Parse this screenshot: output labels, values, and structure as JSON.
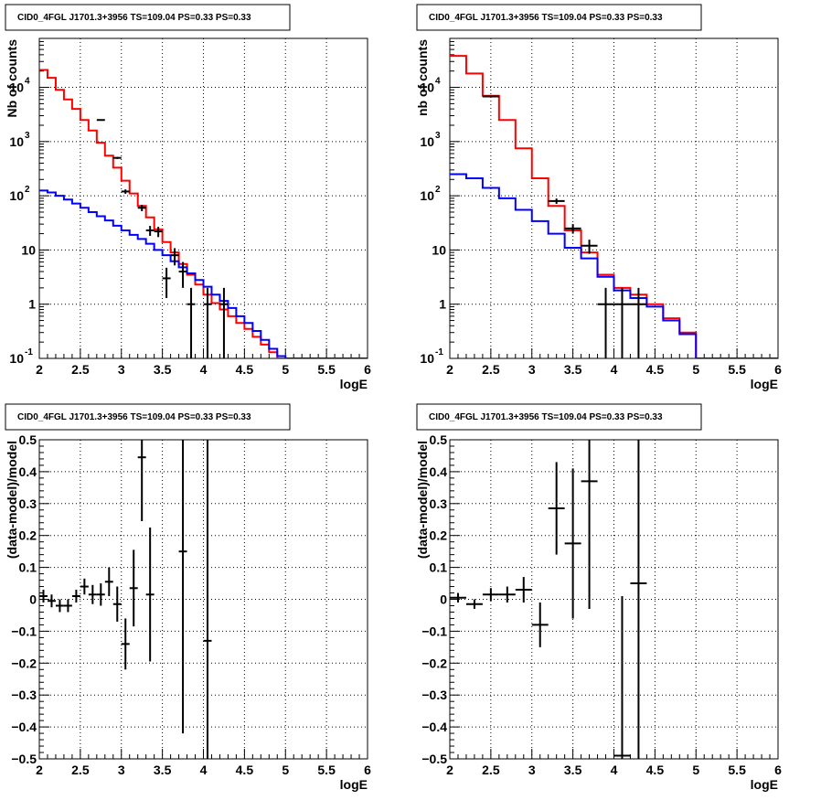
{
  "chart_data": [
    {
      "type": "line",
      "title": "CID0_4FGL J1701.3+3956 TS=109.04 PS=0.33 PS=0.33",
      "xlabel": "logE",
      "ylabel": "Nb of counts",
      "xlim": [
        2,
        6
      ],
      "ylim": [
        0.1,
        80000
      ],
      "yscale": "log",
      "grid": true,
      "x_ticks": [
        2,
        2.5,
        3,
        3.5,
        4,
        4.5,
        5,
        5.5,
        6
      ],
      "x_tick_labels": [
        "2",
        "2.5",
        "3",
        "3.5",
        "4",
        "4.5",
        "5",
        "5.5",
        "6"
      ],
      "y_ticks": [
        0.1,
        1,
        10,
        100,
        1000,
        10000
      ],
      "y_tick_labels": [
        {
          "base": "10",
          "exp": "-1"
        },
        {
          "base": "1",
          "exp": ""
        },
        {
          "base": "10",
          "exp": ""
        },
        {
          "base": "10",
          "exp": "2"
        },
        {
          "base": "10",
          "exp": "3"
        },
        {
          "base": "10",
          "exp": "4"
        }
      ],
      "bin_edges": [
        2,
        2.1,
        2.2,
        2.3,
        2.4,
        2.5,
        2.6,
        2.7,
        2.8,
        2.9,
        3,
        3.1,
        3.2,
        3.3,
        3.4,
        3.5,
        3.6,
        3.7,
        3.8,
        3.9,
        4,
        4.1,
        4.2,
        4.3,
        4.4,
        4.5,
        4.6,
        4.7,
        4.8,
        4.9,
        5,
        5.1,
        5.2,
        5.3,
        5.4,
        5.5,
        5.6,
        5.7,
        5.8,
        5.9,
        6
      ],
      "series": [
        {
          "color": "#ff0000",
          "style": "step",
          "values": [
            21000,
            15000,
            9000,
            6000,
            4000,
            2500,
            1600,
            950,
            550,
            330,
            190,
            110,
            65,
            40,
            24,
            14,
            9,
            5.5,
            3.5,
            2.3,
            1.5,
            1.05,
            0.8,
            0.6,
            0.45,
            0.35,
            0.25,
            0.18,
            0.13,
            0.1,
            0.1,
            0.1,
            0.1,
            0.1,
            0.1,
            0.1,
            0.1,
            0.1,
            0.1,
            0.1
          ]
        },
        {
          "color": "#0000ff",
          "style": "step",
          "values": [
            125,
            115,
            100,
            85,
            72,
            60,
            50,
            42,
            35,
            28,
            23,
            19,
            16,
            13,
            10,
            8,
            6.2,
            4.8,
            3.7,
            2.8,
            2.1,
            1.5,
            1.15,
            0.85,
            0.6,
            0.45,
            0.32,
            0.22,
            0.15,
            0.11,
            0.1,
            0.1,
            0.1,
            0.1,
            0.1,
            0.1,
            0.1,
            0.1,
            0.1,
            0.1
          ]
        },
        {
          "color": "#000000",
          "style": "points",
          "points": [
            {
              "x": 2.75,
              "y": 2500,
              "xerr": 0.05,
              "yerr": [
                50,
                50
              ]
            },
            {
              "x": 2.95,
              "y": 500,
              "xerr": 0.05,
              "yerr": [
                22,
                22
              ]
            },
            {
              "x": 3.05,
              "y": 120,
              "xerr": 0.05,
              "yerr": [
                11,
                11
              ]
            },
            {
              "x": 3.25,
              "y": 60,
              "xerr": 0.05,
              "yerr": [
                8,
                8
              ]
            },
            {
              "x": 3.35,
              "y": 23,
              "xerr": 0.05,
              "yerr": [
                4.8,
                4.8
              ]
            },
            {
              "x": 3.45,
              "y": 22,
              "xerr": 0.05,
              "yerr": [
                4.7,
                4.7
              ]
            },
            {
              "x": 3.55,
              "y": 3,
              "xerr": 0.05,
              "yerr": [
                1.7,
                1.7
              ]
            },
            {
              "x": 3.65,
              "y": 8,
              "xerr": 0.05,
              "yerr": [
                2.8,
                2.8
              ]
            },
            {
              "x": 3.75,
              "y": 4,
              "xerr": 0.05,
              "yerr": [
                2,
                2
              ]
            },
            {
              "x": 3.85,
              "y": 1,
              "xerr": 0.05,
              "yerr": [
                1,
                1
              ]
            },
            {
              "x": 4.05,
              "y": 1,
              "xerr": 0.05,
              "yerr": [
                1,
                1
              ]
            },
            {
              "x": 4.25,
              "y": 1,
              "xerr": 0.05,
              "yerr": [
                1,
                1
              ]
            }
          ]
        }
      ]
    },
    {
      "type": "line",
      "title": "CID0_4FGL J1701.3+3956 TS=109.04 PS=0.33 PS=0.33",
      "xlabel": "logE",
      "ylabel": "nb of counts",
      "xlim": [
        2,
        6
      ],
      "ylim": [
        0.1,
        80000
      ],
      "yscale": "log",
      "grid": true,
      "x_ticks": [
        2,
        2.5,
        3,
        3.5,
        4,
        4.5,
        5,
        5.5,
        6
      ],
      "x_tick_labels": [
        "2",
        "2.5",
        "3",
        "3.5",
        "4",
        "4.5",
        "5",
        "5.5",
        "6"
      ],
      "y_ticks": [
        0.1,
        1,
        10,
        100,
        1000,
        10000
      ],
      "y_tick_labels": [
        {
          "base": "10",
          "exp": "-1"
        },
        {
          "base": "1",
          "exp": ""
        },
        {
          "base": "10",
          "exp": ""
        },
        {
          "base": "10",
          "exp": "2"
        },
        {
          "base": "10",
          "exp": "3"
        },
        {
          "base": "10",
          "exp": "4"
        }
      ],
      "bin_edges": [
        2,
        2.2,
        2.4,
        2.6,
        2.8,
        3,
        3.2,
        3.4,
        3.6,
        3.8,
        4,
        4.2,
        4.4,
        4.6,
        4.8,
        5,
        5.2,
        5.4,
        5.6,
        5.8,
        6
      ],
      "series": [
        {
          "color": "#ff0000",
          "style": "step",
          "values": [
            38000,
            18000,
            7000,
            2500,
            750,
            210,
            65,
            23,
            9,
            3.5,
            2,
            1.5,
            1,
            0.55,
            0.3,
            0.1,
            0.1,
            0.1,
            0.1,
            0.1
          ]
        },
        {
          "color": "#0000ff",
          "style": "step",
          "values": [
            250,
            210,
            140,
            90,
            55,
            34,
            20,
            11,
            7,
            3.2,
            1.8,
            1.3,
            0.9,
            0.5,
            0.28,
            0.1,
            0.1,
            0.1,
            0.1,
            0.1
          ]
        },
        {
          "color": "#000000",
          "style": "points",
          "points": [
            {
              "x": 2.5,
              "y": 6800,
              "xerr": 0.1,
              "yerr": [
                82,
                82
              ]
            },
            {
              "x": 3.3,
              "y": 80,
              "xerr": 0.1,
              "yerr": [
                9,
                9
              ]
            },
            {
              "x": 3.5,
              "y": 25,
              "xerr": 0.1,
              "yerr": [
                5,
                5
              ]
            },
            {
              "x": 3.7,
              "y": 12,
              "xerr": 0.1,
              "yerr": [
                3.5,
                3.5
              ]
            },
            {
              "x": 3.9,
              "y": 1,
              "xerr": 0.1,
              "yerr": [
                1,
                1
              ]
            },
            {
              "x": 4.1,
              "y": 1,
              "xerr": 0.1,
              "yerr": [
                1,
                1
              ]
            },
            {
              "x": 4.3,
              "y": 1,
              "xerr": 0.1,
              "yerr": [
                1,
                1
              ]
            }
          ]
        }
      ]
    },
    {
      "type": "scatter",
      "title": "CID0_4FGL J1701.3+3956 TS=109.04 PS=0.33 PS=0.33",
      "xlabel": "logE",
      "ylabel": "(data-model)/model",
      "xlim": [
        2,
        6
      ],
      "ylim": [
        -0.5,
        0.5
      ],
      "grid": true,
      "x_ticks": [
        2,
        2.5,
        3,
        3.5,
        4,
        4.5,
        5,
        5.5,
        6
      ],
      "x_tick_labels": [
        "2",
        "2.5",
        "3",
        "3.5",
        "4",
        "4.5",
        "5",
        "5.5",
        "6"
      ],
      "y_ticks": [
        -0.5,
        -0.4,
        -0.3,
        -0.2,
        -0.1,
        0,
        0.1,
        0.2,
        0.3,
        0.4,
        0.5
      ],
      "y_tick_labels": [
        "−0.5",
        "−0.4",
        "−0.3",
        "−0.2",
        "−0.1",
        "0",
        "0.1",
        "0.2",
        "0.3",
        "0.4",
        "0.5"
      ],
      "series": [
        {
          "color": "#000000",
          "style": "points",
          "points": [
            {
              "x": 2.05,
              "y": 0.01,
              "xerr": 0.05,
              "yerr": [
                0.02,
                0.02
              ]
            },
            {
              "x": 2.15,
              "y": -0.005,
              "xerr": 0.05,
              "yerr": [
                0.02,
                0.02
              ]
            },
            {
              "x": 2.25,
              "y": -0.02,
              "xerr": 0.05,
              "yerr": [
                0.02,
                0.02
              ]
            },
            {
              "x": 2.35,
              "y": -0.02,
              "xerr": 0.05,
              "yerr": [
                0.02,
                0.02
              ]
            },
            {
              "x": 2.45,
              "y": 0.01,
              "xerr": 0.05,
              "yerr": [
                0.02,
                0.02
              ]
            },
            {
              "x": 2.55,
              "y": 0.04,
              "xerr": 0.05,
              "yerr": [
                0.025,
                0.025
              ]
            },
            {
              "x": 2.65,
              "y": 0.015,
              "xerr": 0.05,
              "yerr": [
                0.03,
                0.03
              ]
            },
            {
              "x": 2.75,
              "y": 0.015,
              "xerr": 0.05,
              "yerr": [
                0.035,
                0.035
              ]
            },
            {
              "x": 2.85,
              "y": 0.055,
              "xerr": 0.05,
              "yerr": [
                0.045,
                0.045
              ]
            },
            {
              "x": 2.95,
              "y": -0.015,
              "xerr": 0.05,
              "yerr": [
                0.055,
                0.055
              ]
            },
            {
              "x": 3.05,
              "y": -0.14,
              "xerr": 0.05,
              "yerr": [
                0.08,
                0.08
              ]
            },
            {
              "x": 3.15,
              "y": 0.035,
              "xerr": 0.05,
              "yerr": [
                0.12,
                0.12
              ]
            },
            {
              "x": 3.25,
              "y": 0.445,
              "xerr": 0.05,
              "yerr": [
                0.2,
                0.2
              ]
            },
            {
              "x": 3.35,
              "y": 0.015,
              "xerr": 0.05,
              "yerr": [
                0.21,
                0.21
              ]
            },
            {
              "x": 3.75,
              "y": 0.15,
              "xerr": 0.05,
              "yerr": [
                0.57,
                0.57
              ]
            },
            {
              "x": 4.05,
              "y": -0.13,
              "xerr": 0.05,
              "yerr": [
                1.0,
                1.0
              ]
            }
          ]
        }
      ]
    },
    {
      "type": "scatter",
      "title": "CID0_4FGL J1701.3+3956 TS=109.04 PS=0.33 PS=0.33",
      "xlabel": "logE",
      "ylabel": "(data-model)/model",
      "xlim": [
        2,
        6
      ],
      "ylim": [
        -0.5,
        0.5
      ],
      "grid": true,
      "x_ticks": [
        2,
        2.5,
        3,
        3.5,
        4,
        4.5,
        5,
        5.5,
        6
      ],
      "x_tick_labels": [
        "2",
        "2.5",
        "3",
        "3.5",
        "4",
        "4.5",
        "5",
        "5.5",
        "6"
      ],
      "y_ticks": [
        -0.5,
        -0.4,
        -0.3,
        -0.2,
        -0.1,
        0,
        0.1,
        0.2,
        0.3,
        0.4,
        0.5
      ],
      "y_tick_labels": [
        "−0.5",
        "−0.4",
        "−0.3",
        "−0.2",
        "−0.1",
        "0",
        "0.1",
        "0.2",
        "0.3",
        "0.4",
        "0.5"
      ],
      "series": [
        {
          "color": "#000000",
          "style": "points",
          "points": [
            {
              "x": 2.1,
              "y": 0.005,
              "xerr": 0.1,
              "yerr": [
                0.015,
                0.015
              ]
            },
            {
              "x": 2.3,
              "y": -0.015,
              "xerr": 0.1,
              "yerr": [
                0.015,
                0.015
              ]
            },
            {
              "x": 2.5,
              "y": 0.015,
              "xerr": 0.1,
              "yerr": [
                0.02,
                0.02
              ]
            },
            {
              "x": 2.7,
              "y": 0.015,
              "xerr": 0.1,
              "yerr": [
                0.025,
                0.025
              ]
            },
            {
              "x": 2.9,
              "y": 0.03,
              "xerr": 0.1,
              "yerr": [
                0.04,
                0.04
              ]
            },
            {
              "x": 3.1,
              "y": -0.08,
              "xerr": 0.1,
              "yerr": [
                0.07,
                0.07
              ]
            },
            {
              "x": 3.3,
              "y": 0.285,
              "xerr": 0.1,
              "yerr": [
                0.145,
                0.145
              ]
            },
            {
              "x": 3.5,
              "y": 0.175,
              "xerr": 0.1,
              "yerr": [
                0.235,
                0.235
              ]
            },
            {
              "x": 3.7,
              "y": 0.37,
              "xerr": 0.1,
              "yerr": [
                0.4,
                0.4
              ]
            },
            {
              "x": 4.1,
              "y": -0.49,
              "xerr": 0.1,
              "yerr": [
                0.5,
                0.5
              ]
            },
            {
              "x": 4.3,
              "y": 0.05,
              "xerr": 0.1,
              "yerr": [
                1.0,
                1.0
              ]
            }
          ]
        }
      ]
    }
  ]
}
